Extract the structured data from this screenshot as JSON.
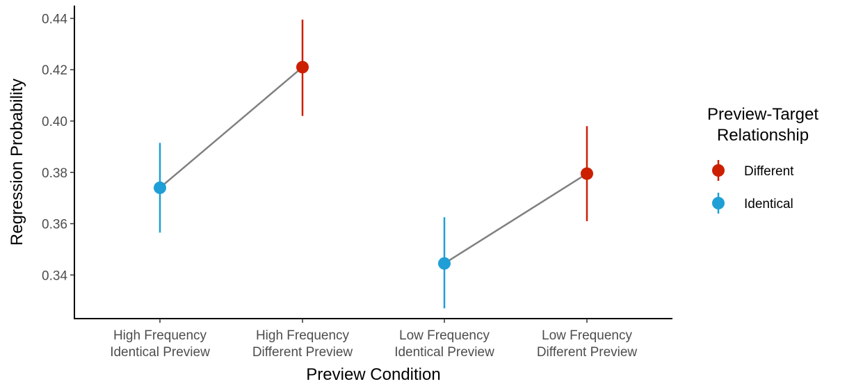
{
  "chart_data": {
    "type": "scatter",
    "title": "",
    "xlabel": "Preview Condition",
    "ylabel": "Regression Probability",
    "categories": [
      [
        "High Frequency",
        "Identical Preview"
      ],
      [
        "High Frequency",
        "Different Preview"
      ],
      [
        "Low Frequency",
        "Identical Preview"
      ],
      [
        "Low Frequency",
        "Different Preview"
      ]
    ],
    "ylim": [
      0.323,
      0.445
    ],
    "yticks": [
      "0.34",
      "0.36",
      "0.38",
      "0.40",
      "0.42",
      "0.44"
    ],
    "grid": false,
    "legend_position": "right",
    "legend_title": [
      "Preview-Target",
      "Relationship"
    ],
    "series": [
      {
        "name": "Different",
        "color": "#cc1f00"
      },
      {
        "name": "Identical",
        "color": "#1f9fd6"
      }
    ],
    "points": [
      {
        "category": 0,
        "series": "Identical",
        "value": 0.374,
        "ci_low": 0.3565,
        "ci_high": 0.3915
      },
      {
        "category": 1,
        "series": "Different",
        "value": 0.421,
        "ci_low": 0.402,
        "ci_high": 0.4395
      },
      {
        "category": 2,
        "series": "Identical",
        "value": 0.3445,
        "ci_low": 0.327,
        "ci_high": 0.3625
      },
      {
        "category": 3,
        "series": "Different",
        "value": 0.3795,
        "ci_low": 0.361,
        "ci_high": 0.398
      }
    ],
    "connectors": [
      [
        0,
        1
      ],
      [
        2,
        3
      ]
    ],
    "connector_color": "#808080"
  }
}
